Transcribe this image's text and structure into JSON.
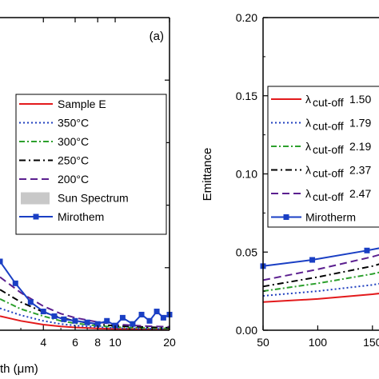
{
  "chart_data": [
    {
      "type": "line",
      "panel_label": "(a)",
      "xlabel": "th (μm)",
      "x_scale": "log",
      "xlim": [
        2.3,
        20
      ],
      "ylim": [
        0,
        1
      ],
      "x_ticks": [
        {
          "v": 4,
          "label": "4"
        },
        {
          "v": 6,
          "label": "6"
        },
        {
          "v": 8,
          "label": "8"
        },
        {
          "v": 10,
          "label": "10"
        },
        {
          "v": 20,
          "label": "20"
        }
      ],
      "legend_position": "right",
      "series": [
        {
          "name": "Sample E",
          "color": "#e31a1c",
          "dash": "",
          "x": [
            2.3,
            3,
            4,
            5,
            6,
            8,
            10,
            15,
            20
          ],
          "y": [
            0.045,
            0.03,
            0.018,
            0.012,
            0.009,
            0.006,
            0.004,
            0.003,
            0.002
          ]
        },
        {
          "name": "350°C",
          "color": "#1f3fbf",
          "dash": "2,3",
          "x": [
            2.3,
            3,
            4,
            5,
            6,
            8,
            10,
            15,
            20
          ],
          "y": [
            0.07,
            0.048,
            0.03,
            0.02,
            0.015,
            0.01,
            0.007,
            0.005,
            0.004
          ]
        },
        {
          "name": "300°C",
          "color": "#2ca02c",
          "dash": "7,3,2,3",
          "x": [
            2.3,
            3,
            4,
            5,
            6,
            8,
            10,
            15,
            20
          ],
          "y": [
            0.1,
            0.068,
            0.045,
            0.03,
            0.022,
            0.014,
            0.01,
            0.007,
            0.006
          ]
        },
        {
          "name": "250°C",
          "color": "#000000",
          "dash": "8,4,2,4",
          "x": [
            2.3,
            3,
            4,
            5,
            6,
            8,
            10,
            15,
            20
          ],
          "y": [
            0.13,
            0.09,
            0.058,
            0.04,
            0.03,
            0.019,
            0.014,
            0.01,
            0.008
          ]
        },
        {
          "name": "200°C",
          "color": "#5b1f8f",
          "dash": "9,5",
          "x": [
            2.3,
            3,
            4,
            5,
            6,
            8,
            10,
            15,
            20
          ],
          "y": [
            0.17,
            0.12,
            0.077,
            0.053,
            0.04,
            0.026,
            0.019,
            0.013,
            0.011
          ]
        },
        {
          "name": "Sun Spectrum",
          "color": "#c8c8c8",
          "swatch": true,
          "x": [],
          "y": []
        },
        {
          "name": "Mirothem",
          "color": "#1a3fc4",
          "dash": "",
          "marker": "square",
          "x": [
            2.3,
            2.8,
            3.4,
            4,
            4.6,
            5.2,
            6,
            7,
            8,
            9,
            10,
            11,
            12.5,
            14,
            15.5,
            17,
            18.5,
            20
          ],
          "y": [
            0.22,
            0.15,
            0.09,
            0.06,
            0.045,
            0.035,
            0.03,
            0.025,
            0.02,
            0.03,
            0.015,
            0.04,
            0.02,
            0.05,
            0.03,
            0.06,
            0.04,
            0.05
          ]
        }
      ]
    },
    {
      "type": "line",
      "ylabel": "Emittance",
      "xlim": [
        50,
        175
      ],
      "ylim": [
        0,
        0.2
      ],
      "x_ticks": [
        {
          "v": 50,
          "label": "50"
        },
        {
          "v": 100,
          "label": "100"
        },
        {
          "v": 150,
          "label": "150"
        }
      ],
      "y_ticks": [
        {
          "v": 0,
          "label": "0.00"
        },
        {
          "v": 0.05,
          "label": "0.05"
        },
        {
          "v": 0.1,
          "label": "0.10"
        },
        {
          "v": 0.15,
          "label": "0.15"
        },
        {
          "v": 0.2,
          "label": "0.20"
        }
      ],
      "legend_position": "top-right",
      "series": [
        {
          "name": "λ",
          "sub": "cut-off",
          "value": "1.50",
          "color": "#e31a1c",
          "dash": "",
          "x": [
            50,
            100,
            150,
            175
          ],
          "y": [
            0.018,
            0.02,
            0.023,
            0.025
          ]
        },
        {
          "name": "λ",
          "sub": "cut-off",
          "value": "1.79",
          "color": "#1f3fbf",
          "dash": "2,3",
          "x": [
            50,
            100,
            150,
            175
          ],
          "y": [
            0.022,
            0.025,
            0.029,
            0.032
          ]
        },
        {
          "name": "λ",
          "sub": "cut-off",
          "value": "2.19",
          "color": "#2ca02c",
          "dash": "7,3,2,3",
          "x": [
            50,
            100,
            150,
            175
          ],
          "y": [
            0.025,
            0.03,
            0.036,
            0.04
          ]
        },
        {
          "name": "λ",
          "sub": "cut-off",
          "value": "2.37",
          "color": "#000000",
          "dash": "8,4,2,4",
          "x": [
            50,
            100,
            150,
            175
          ],
          "y": [
            0.028,
            0.034,
            0.041,
            0.046
          ]
        },
        {
          "name": "λ",
          "sub": "cut-off",
          "value": "2.47",
          "color": "#5b1f8f",
          "dash": "9,5",
          "x": [
            50,
            100,
            150,
            175
          ],
          "y": [
            0.032,
            0.039,
            0.047,
            0.052
          ]
        },
        {
          "name": "Mirotherm",
          "color": "#1a3fc4",
          "dash": "",
          "marker": "square",
          "x": [
            50,
            95,
            145,
            175
          ],
          "y": [
            0.041,
            0.045,
            0.051,
            0.055
          ]
        }
      ]
    }
  ]
}
